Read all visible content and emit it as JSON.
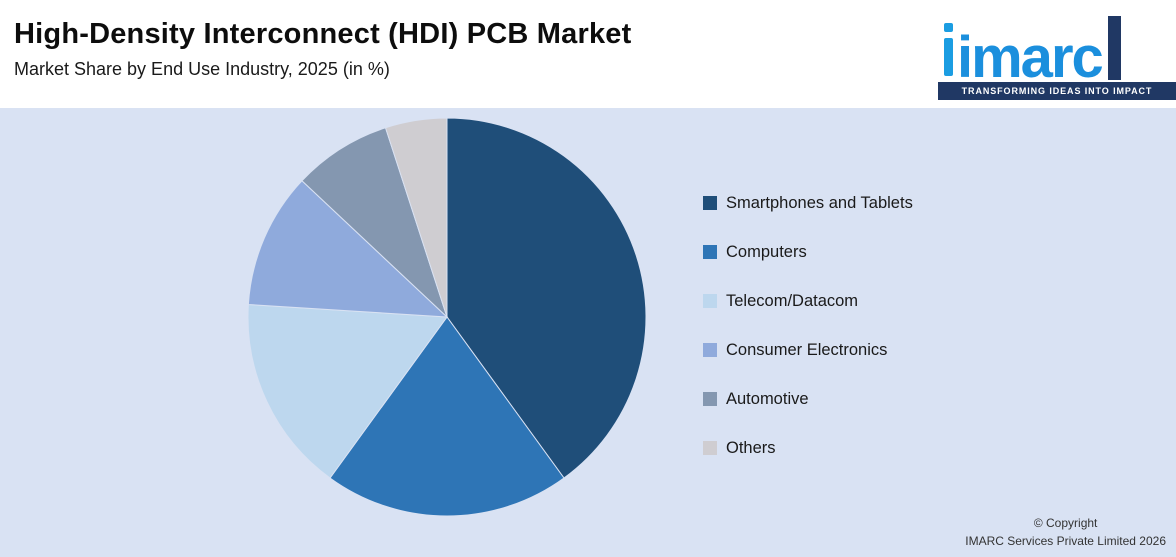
{
  "header": {
    "title": "High-Density Interconnect (HDI) PCB Market",
    "subtitle": "Market Share by End Use Industry, 2025 (in %)"
  },
  "logo": {
    "word": "imarc",
    "tagline": "TRANSFORMING IDEAS INTO IMPACT"
  },
  "footer": {
    "line1": "© Copyright",
    "line2": "IMARC Services Private Limited 2026"
  },
  "colors": {
    "background": "#d9e2f3",
    "header_background": "#ffffff",
    "logo_blue": "#1b8fdd",
    "logo_navy": "#203864"
  },
  "chart_data": {
    "type": "pie",
    "title": "High-Density Interconnect (HDI) PCB Market",
    "subtitle": "Market Share by End Use Industry, 2025 (in %)",
    "start_angle_deg": 0,
    "direction": "clockwise",
    "legend_position": "right",
    "units": "%",
    "slices": [
      {
        "label": "Smartphones and Tablets",
        "value": 40,
        "color": "#1f4e79"
      },
      {
        "label": "Computers",
        "value": 20,
        "color": "#2e75b6"
      },
      {
        "label": "Telecom/Datacom",
        "value": 16,
        "color": "#bdd7ee"
      },
      {
        "label": "Consumer Electronics",
        "value": 11,
        "color": "#8faadc"
      },
      {
        "label": "Automotive",
        "value": 8,
        "color": "#8497b0"
      },
      {
        "label": "Others",
        "value": 5,
        "color": "#cfcdd1"
      }
    ]
  }
}
